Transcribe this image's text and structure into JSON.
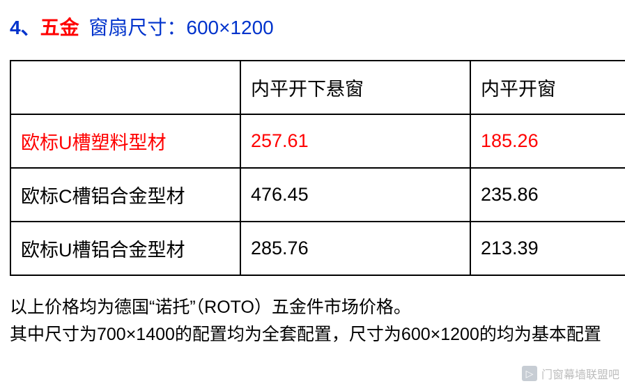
{
  "heading": {
    "number_label": "4、",
    "hardware_label": "五金",
    "dimension_label": "窗扇尺寸：600×1200"
  },
  "table": {
    "header": {
      "blank": "",
      "col2": "内平开下悬窗",
      "col3": "内平开窗"
    },
    "rows": [
      {
        "name": "欧标U槽塑料型材",
        "c2": "257.61",
        "c3": "185.26",
        "highlight": true
      },
      {
        "name": "欧标C槽铝合金型材",
        "c2": "476.45",
        "c3": "235.86",
        "highlight": false
      },
      {
        "name": "欧标U槽铝合金型材",
        "c2": "285.76",
        "c3": "213.39",
        "highlight": false
      }
    ],
    "border_color": "#000000",
    "highlight_color": "#ff0000",
    "text_color": "#000000",
    "font_size_pt": 20
  },
  "notes": {
    "line1": "以上价格均为德国“诺托”（ROTO）五金件市场价格。",
    "line2": "其中尺寸为700×1400的配置均为全套配置，尺寸为600×1200的均为基本配置"
  },
  "watermark": {
    "icon_glyph": "▷",
    "text": "门窗幕墙联盟吧"
  },
  "colors": {
    "blue": "#0033cc",
    "red": "#ff0000",
    "black": "#000000",
    "background": "#ffffff"
  }
}
